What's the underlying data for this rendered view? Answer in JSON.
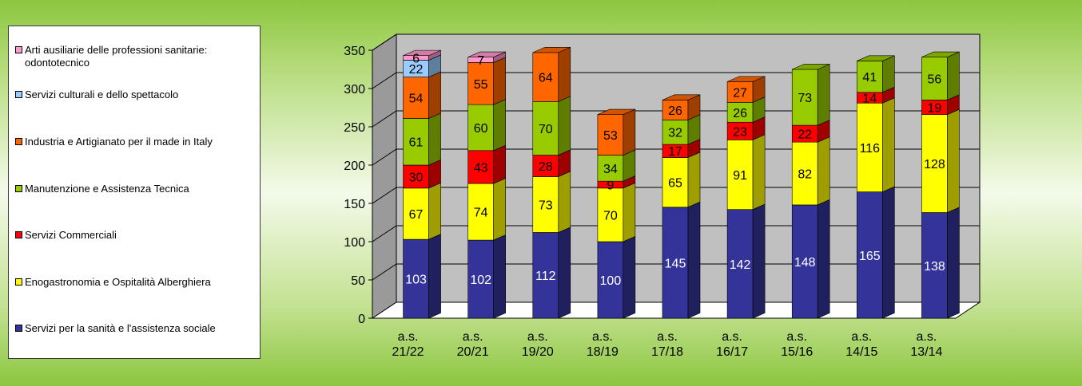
{
  "chart_data": {
    "type": "bar",
    "stacked": true,
    "three_d": true,
    "categories": [
      "a.s. 21/22",
      "a.s. 20/21",
      "a.s. 19/20",
      "a.s. 18/19",
      "a.s. 17/18",
      "a.s. 16/17",
      "a.s. 15/16",
      "a.s. 14/15",
      "a.s. 13/14"
    ],
    "category_lines": [
      [
        "a.s.",
        "21/22"
      ],
      [
        "a.s.",
        "20/21"
      ],
      [
        "a.s.",
        "19/20"
      ],
      [
        "a.s.",
        "18/19"
      ],
      [
        "a.s.",
        "17/18"
      ],
      [
        "a.s.",
        "16/17"
      ],
      [
        "a.s.",
        "15/16"
      ],
      [
        "a.s.",
        "14/15"
      ],
      [
        "a.s.",
        "13/14"
      ]
    ],
    "series": [
      {
        "name": "Servizi per la sanità e l'assistenza sociale",
        "color": "#333399",
        "label_color": "#ffffff",
        "values": [
          103,
          102,
          112,
          100,
          145,
          142,
          148,
          165,
          138
        ]
      },
      {
        "name": "Enogastronomia e Ospitalità Alberghiera",
        "color": "#ffff00",
        "label_color": "#000000",
        "values": [
          67,
          74,
          73,
          70,
          65,
          91,
          82,
          116,
          128
        ]
      },
      {
        "name": "Servizi Commerciali",
        "color": "#ff0000",
        "label_color": "#000000",
        "values": [
          30,
          43,
          28,
          9,
          17,
          23,
          22,
          14,
          19
        ]
      },
      {
        "name": "Manutenzione e Assistenza Tecnica",
        "color": "#99cc00",
        "label_color": "#000000",
        "values": [
          61,
          60,
          70,
          34,
          32,
          26,
          73,
          41,
          56
        ]
      },
      {
        "name": "Industria e Artigianato per il made in Italy",
        "color": "#ff6600",
        "label_color": "#000000",
        "values": [
          54,
          55,
          64,
          53,
          26,
          27,
          null,
          null,
          null
        ]
      },
      {
        "name": "Servizi culturali e dello spettacolo",
        "color": "#99ccff",
        "label_color": "#000000",
        "values": [
          22,
          null,
          null,
          null,
          null,
          null,
          null,
          null,
          null
        ]
      },
      {
        "name": "Arti ausiliarie delle professioni sanitarie: odontotecnico",
        "color": "#ff99cc",
        "label_color": "#000000",
        "values": [
          6,
          7,
          null,
          null,
          null,
          null,
          null,
          null,
          null
        ]
      }
    ],
    "ylim": [
      0,
      350
    ],
    "yticks": [
      0,
      50,
      100,
      150,
      200,
      250,
      300,
      350
    ],
    "grid": true,
    "legend_position": "left"
  },
  "legend": {
    "items": [
      {
        "label": "Arti ausiliarie delle professioni sanitarie: odontotecnico",
        "color": "#ff99cc"
      },
      {
        "label": "Servizi culturali e dello spettacolo",
        "color": "#99ccff"
      },
      {
        "label": "Industria e Artigianato per il made in Italy",
        "color": "#ff6600"
      },
      {
        "label": "Manutenzione e Assistenza Tecnica",
        "color": "#99cc00"
      },
      {
        "label": "Servizi Commerciali",
        "color": "#ff0000"
      },
      {
        "label": "Enogastronomia e Ospitalità Alberghiera",
        "color": "#ffff00"
      },
      {
        "label": "Servizi per la sanità e l'assistenza sociale",
        "color": "#333399"
      }
    ]
  },
  "colors": {
    "background": "#8cc63f",
    "plot_wall": "#c0c0c0",
    "gridline": "#000000"
  }
}
